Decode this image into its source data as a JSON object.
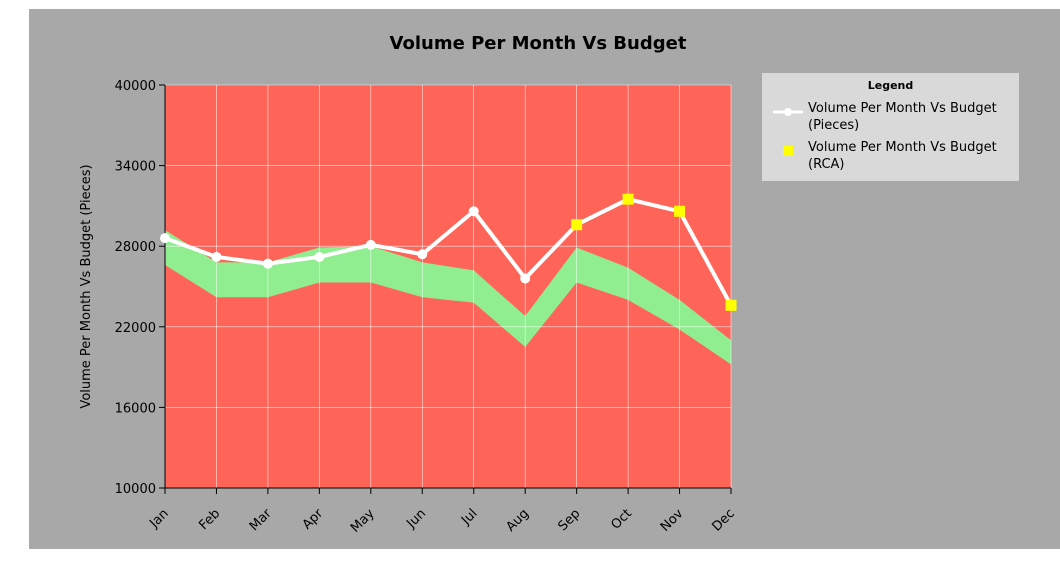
{
  "chart_data": {
    "type": "line",
    "title": "Volume Per Month Vs Budget",
    "xlabel": "",
    "ylabel": "Volume Per Month Vs Budget (Pieces)",
    "categories": [
      "Jan",
      "Feb",
      "Mar",
      "Apr",
      "May",
      "Jun",
      "Jul",
      "Aug",
      "Sep",
      "Oct",
      "Nov",
      "Dec"
    ],
    "ylim": [
      10000,
      40000
    ],
    "yticks": [
      10000,
      16000,
      22000,
      28000,
      34000,
      40000
    ],
    "ytick_labels": [
      "10000",
      "16000",
      "22000",
      "28000",
      "34000",
      "40000"
    ],
    "grid": true,
    "series": [
      {
        "name": "Volume Per Month Vs Budget (Pieces)",
        "type": "line",
        "color": "#ffffff",
        "values": [
          28600,
          27200,
          26700,
          27200,
          28100,
          27400,
          30600,
          25600,
          29600,
          31500,
          30600,
          23600
        ]
      },
      {
        "name": "Volume Per Month Vs Budget (RCA)",
        "type": "marker",
        "color": "#ffff00",
        "points": [
          {
            "category": "Sep",
            "value": 29600
          },
          {
            "category": "Oct",
            "value": 31500
          },
          {
            "category": "Nov",
            "value": 30600
          },
          {
            "category": "Dec",
            "value": 23600
          }
        ]
      }
    ],
    "budget_band": {
      "color": "#90ee90",
      "upper": [
        29200,
        26800,
        26800,
        27900,
        28000,
        26800,
        26200,
        22800,
        27900,
        26400,
        24000,
        21000
      ],
      "lower": [
        26600,
        24200,
        24200,
        25300,
        25300,
        24200,
        23800,
        20500,
        25300,
        24000,
        21800,
        19200
      ]
    },
    "background_color": "#ff6459",
    "legend": {
      "title": "Legend",
      "position": "right"
    }
  }
}
